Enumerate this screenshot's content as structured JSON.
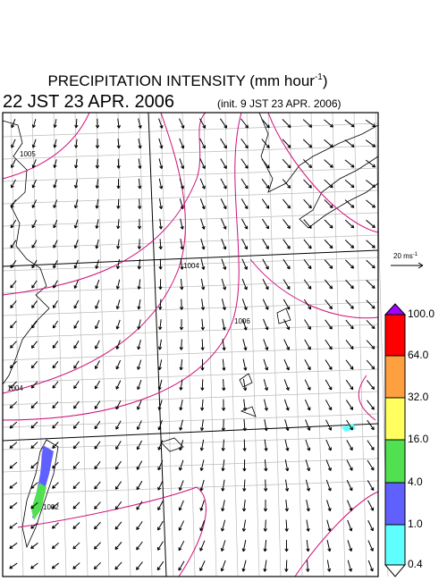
{
  "header": {
    "title": "PRECIPITATION INTENSITY (mm hour",
    "title_exponent": "-1",
    "title_close": ")",
    "valid_time": "22 JST 23 APR. 2006",
    "init_time": "(init. 9 JST 23 APR. 2006)"
  },
  "map": {
    "isobar_labels": [
      "1005",
      "1004",
      "1006",
      "1004",
      "1002"
    ],
    "scale_label": "20 ms",
    "scale_exponent": "-1"
  },
  "colorbar": {
    "labels": [
      "100.0",
      "64.0",
      "32.0",
      "16.0",
      "4.0",
      "1.0",
      "0.4"
    ],
    "colors": [
      "#a000ff",
      "#ff0000",
      "#ffa040",
      "#ffff60",
      "#50e050",
      "#6060ff",
      "#60ffff",
      "#ffffff"
    ]
  }
}
